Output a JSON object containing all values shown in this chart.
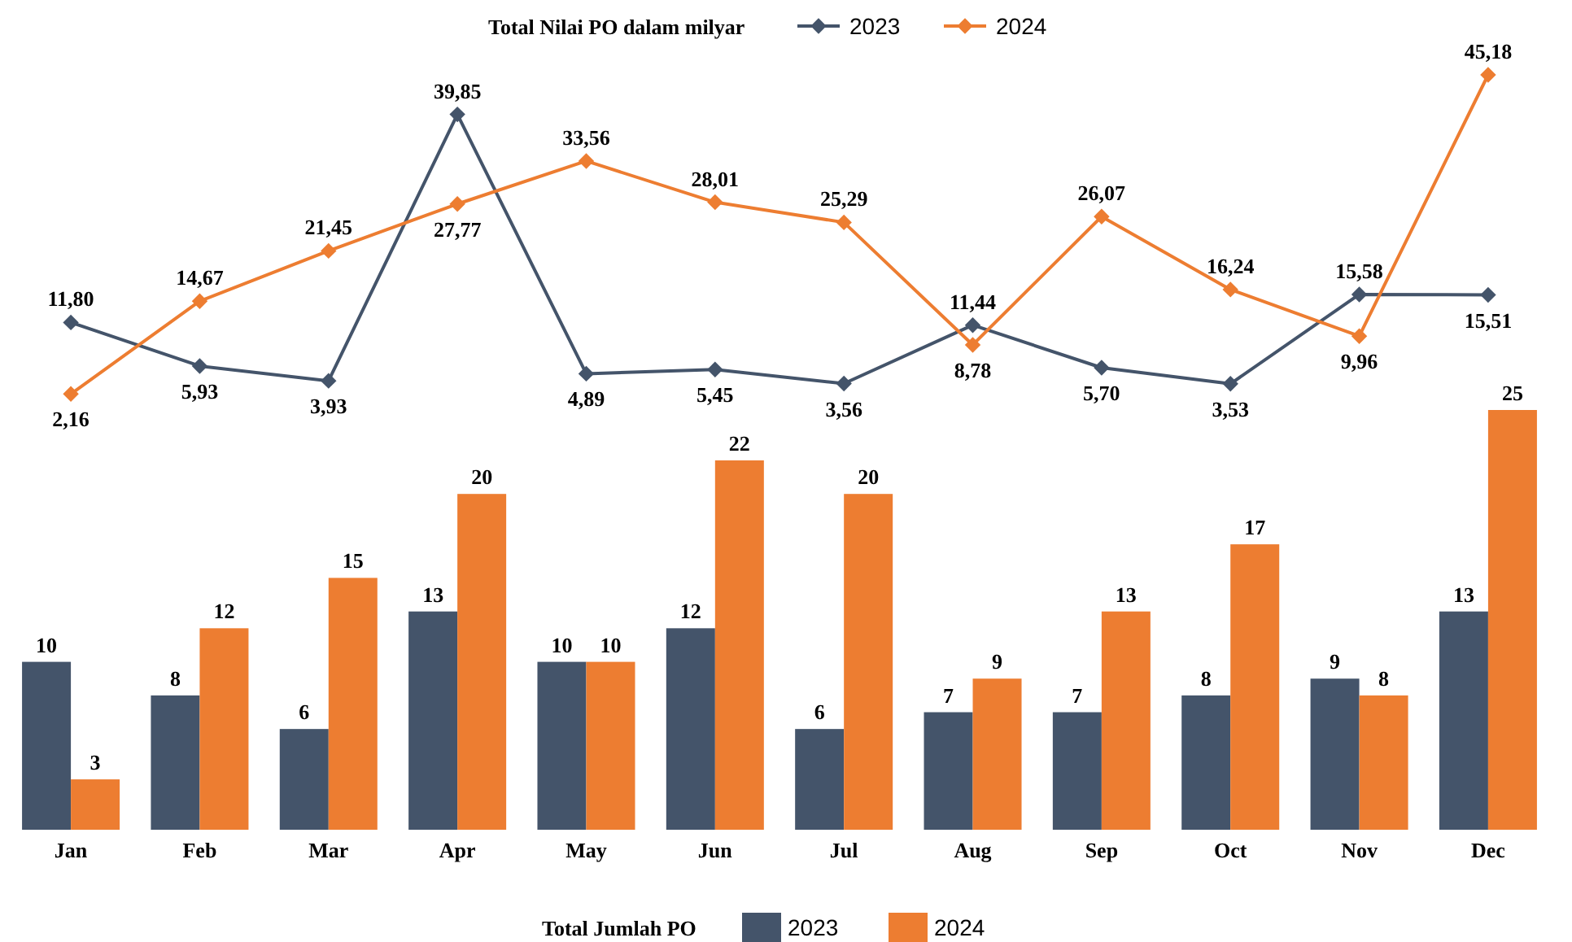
{
  "chart_data": [
    {
      "type": "line",
      "categories": [
        null,
        null,
        null,
        null,
        null,
        null,
        null,
        null,
        null,
        null,
        null,
        null
      ],
      "marker": "diamond",
      "legend": "top",
      "legend_title": "Total Nilai PO dalam milyar",
      "series": [
        {
          "name": "2023",
          "color": "#44546a",
          "values": [
            11.8,
            5.93,
            3.93,
            39.85,
            4.89,
            5.45,
            3.56,
            11.44,
            5.7,
            3.53,
            15.58,
            15.51
          ],
          "value_labels": [
            "11,80",
            "5,93",
            "3,93",
            "39,85",
            "4,89",
            "5,45",
            "3,56",
            "11,44",
            "5,70",
            "3,53",
            "15,58",
            "15,51"
          ]
        },
        {
          "name": "2024",
          "color": "#ed7d31",
          "values": [
            2.16,
            14.67,
            21.45,
            27.77,
            33.56,
            28.01,
            25.29,
            8.78,
            26.07,
            16.24,
            9.96,
            45.18
          ],
          "value_labels": [
            "2,16",
            "14,67",
            "21,45",
            "27,77",
            "33,56",
            "28,01",
            "25,29",
            "8,78",
            "26,07",
            "16,24",
            "9,96",
            "45,18"
          ]
        }
      ]
    },
    {
      "type": "bar",
      "categories": [
        "Jan",
        "Feb",
        "Mar",
        "Apr",
        "May",
        "Jun",
        "Jul",
        "Aug",
        "Sep",
        "Oct",
        "Nov",
        "Dec"
      ],
      "legend": "bottom",
      "legend_title": "Total Jumlah PO",
      "data_labels": true,
      "series": [
        {
          "name": "2023",
          "color": "#44546a",
          "values": [
            10,
            8,
            6,
            13,
            10,
            12,
            6,
            7,
            7,
            8,
            9,
            13
          ]
        },
        {
          "name": "2024",
          "color": "#ed7d31",
          "values": [
            3,
            12,
            15,
            20,
            10,
            22,
            20,
            9,
            13,
            17,
            8,
            25
          ]
        }
      ]
    }
  ]
}
